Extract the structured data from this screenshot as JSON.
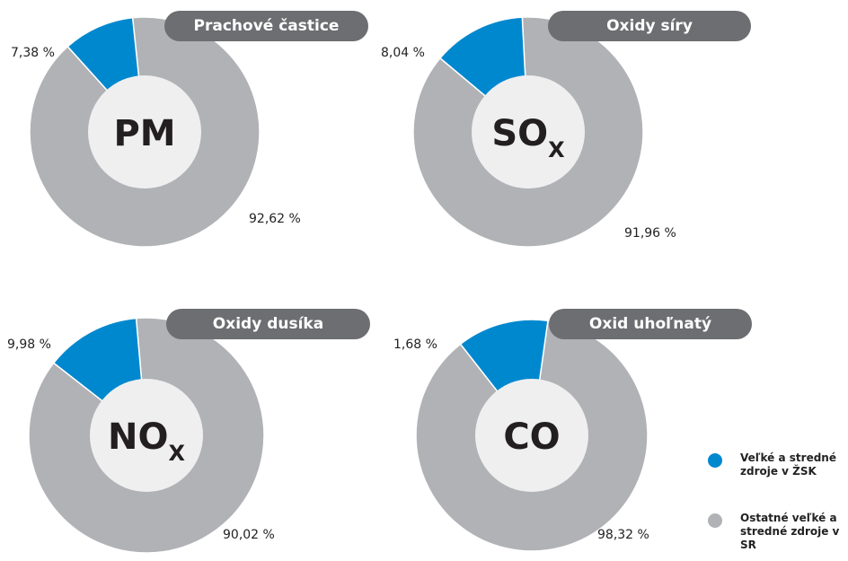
{
  "chart_data": [
    {
      "type": "pie",
      "title": "Prachové častice",
      "center_label": "PM",
      "center_sub": "",
      "values": [
        7.38,
        92.62
      ],
      "value_labels": [
        "7,38 %",
        "92,62 %"
      ],
      "series": [
        {
          "name": "Veľké a stredné zdroje v ŽSK",
          "value": 7.38
        },
        {
          "name": "Ostatné veľké a stredné zdroje v SR",
          "value": 92.62
        }
      ]
    },
    {
      "type": "pie",
      "title": "Oxidy síry",
      "center_label": "SO",
      "center_sub": "X",
      "values": [
        8.04,
        91.96
      ],
      "value_labels": [
        "8,04 %",
        "91,96 %"
      ],
      "series": [
        {
          "name": "Veľké a stredné zdroje v ŽSK",
          "value": 8.04
        },
        {
          "name": "Ostatné veľké a stredné zdroje v SR",
          "value": 91.96
        }
      ]
    },
    {
      "type": "pie",
      "title": "Oxidy dusíka",
      "center_label": "NO",
      "center_sub": "X",
      "values": [
        9.98,
        90.02
      ],
      "value_labels": [
        "9,98 %",
        "90,02 %"
      ],
      "series": [
        {
          "name": "Veľké a stredné zdroje v ŽSK",
          "value": 9.98
        },
        {
          "name": "Ostatné veľké a stredné zdroje v SR",
          "value": 90.02
        }
      ]
    },
    {
      "type": "pie",
      "title": "Oxid uhoľnatý",
      "center_label": "CO",
      "center_sub": "",
      "values": [
        1.68,
        98.32
      ],
      "value_labels": [
        "1,68 %",
        "98,32 %"
      ],
      "series": [
        {
          "name": "Veľké a stredné zdroje v ŽSK",
          "value": 1.68
        },
        {
          "name": "Ostatné veľké a stredné zdroje v SR",
          "value": 98.32
        }
      ]
    }
  ],
  "legend": {
    "items": [
      {
        "label": "Veľké a stredné zdroje v ŽSK",
        "color": "#0088cf"
      },
      {
        "label": "Ostatné veľké a stredné zdroje v SR",
        "color": "#b1b2b6"
      }
    ]
  },
  "colors": {
    "zsk": "#0088cf",
    "other": "#b1b2b6",
    "hole": "#efeff0",
    "tag": "#6d6e71"
  }
}
